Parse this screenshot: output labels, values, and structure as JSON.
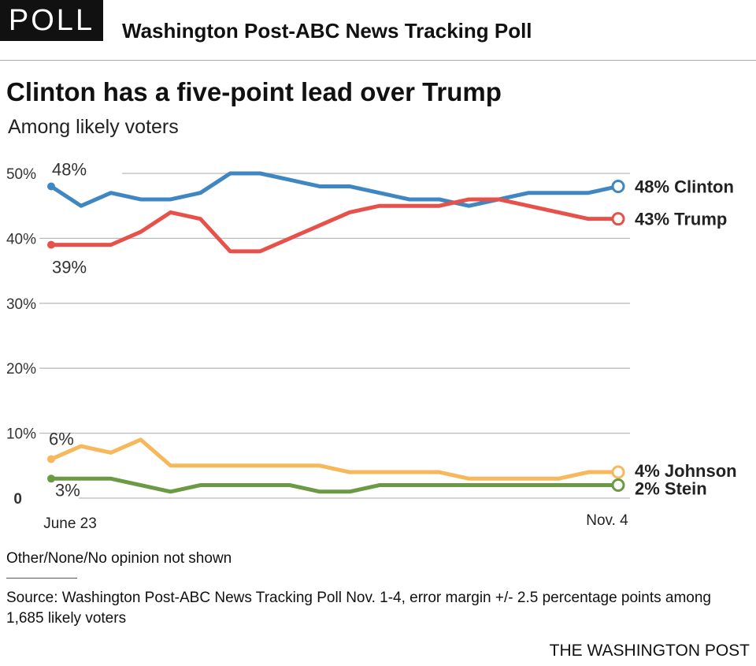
{
  "header": {
    "badge": "POLL",
    "kicker": "Washington Post-ABC News Tracking Poll",
    "title": "Clinton has a five-point lead over Trump",
    "subtitle": "Among likely voters"
  },
  "chart_data": {
    "type": "line",
    "x_labels": {
      "start": "June 23",
      "end": "Nov. 4"
    },
    "y_ticks": [
      {
        "value": 50,
        "label": "50%"
      },
      {
        "value": 40,
        "label": "40%"
      },
      {
        "value": 30,
        "label": "30%"
      },
      {
        "value": 20,
        "label": "20%"
      },
      {
        "value": 10,
        "label": "10%"
      },
      {
        "value": 0,
        "label": "0"
      }
    ],
    "ylim": [
      0,
      50
    ],
    "grid": true,
    "series": [
      {
        "name": "Clinton",
        "color": "#3f87c2",
        "values": [
          48,
          45,
          47,
          46,
          46,
          47,
          50,
          50,
          49,
          48,
          48,
          47,
          46,
          46,
          45,
          46,
          47,
          47,
          47,
          48
        ],
        "start_label": "48%",
        "end_label": "48% Clinton"
      },
      {
        "name": "Trump",
        "color": "#e8514a",
        "values": [
          39,
          39,
          39,
          41,
          44,
          43,
          38,
          38,
          40,
          42,
          44,
          45,
          45,
          45,
          46,
          46,
          45,
          44,
          43,
          43
        ],
        "start_label": "39%",
        "end_label": "43% Trump"
      },
      {
        "name": "Johnson",
        "color": "#f6b85a",
        "values": [
          6,
          8,
          7,
          9,
          5,
          5,
          5,
          5,
          5,
          5,
          4,
          4,
          4,
          4,
          3,
          3,
          3,
          3,
          4,
          4
        ],
        "start_label": "6%",
        "end_label": "4% Johnson"
      },
      {
        "name": "Stein",
        "color": "#6a9a44",
        "values": [
          3,
          3,
          3,
          2,
          1,
          2,
          2,
          2,
          2,
          1,
          1,
          2,
          2,
          2,
          2,
          2,
          2,
          2,
          2,
          2
        ],
        "start_label": "3%",
        "end_label": "2% Stein"
      }
    ]
  },
  "footer": {
    "note": "Other/None/No opinion not shown",
    "source": "Source: Washington Post-ABC News Tracking Poll Nov. 1-4, error margin +/- 2.5 percentage points among 1,685 likely voters",
    "credit": "THE WASHINGTON POST"
  }
}
